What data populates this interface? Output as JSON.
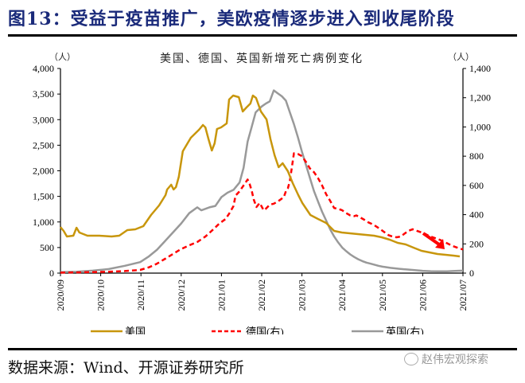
{
  "figure": {
    "title": "图13：受益于疫苗推广，美欧疫情逐步进入到收尾阶段",
    "source": "数据来源：Wind、开源证券研究所",
    "watermark": "赵伟宏观探索",
    "watermark_icon": "wechat-icon"
  },
  "chart_data": {
    "type": "line",
    "title": "美国、德国、英国新增死亡病例变化",
    "xlabel": "",
    "ylabel_left": "（人）",
    "ylabel_right": "（人）",
    "x_tick_labels": [
      "2020/09",
      "2020/10",
      "2020/11",
      "2020/12",
      "2021/01",
      "2021/02",
      "2021/03",
      "2021/04",
      "2021/05",
      "2021/06",
      "2021/07"
    ],
    "x_unit": "months since 2020/09",
    "xlim": [
      0,
      10
    ],
    "ylim_left": [
      0,
      4000
    ],
    "ylim_right": [
      0,
      1400
    ],
    "y_ticks_left": [
      "0",
      "500",
      "1,000",
      "1,500",
      "2,000",
      "2,500",
      "3,000",
      "3,500",
      "4,000"
    ],
    "y_ticks_right": [
      "0",
      "200",
      "400",
      "600",
      "800",
      "1,000",
      "1,200",
      "1,400"
    ],
    "grid": false,
    "legend_position": "bottom",
    "annotation": "red arrow pointing down-right near 2021/06",
    "series": [
      {
        "name": "美国",
        "axis": "left",
        "color": "#c8960c",
        "style": "solid",
        "points": [
          [
            0,
            900
          ],
          [
            0.08,
            825
          ],
          [
            0.16,
            716
          ],
          [
            0.32,
            732
          ],
          [
            0.4,
            887
          ],
          [
            0.47,
            794
          ],
          [
            0.67,
            732
          ],
          [
            0.97,
            732
          ],
          [
            1.27,
            716
          ],
          [
            1.46,
            732
          ],
          [
            1.66,
            840
          ],
          [
            1.86,
            856
          ],
          [
            2.06,
            918
          ],
          [
            2.25,
            1136
          ],
          [
            2.45,
            1323
          ],
          [
            2.61,
            1525
          ],
          [
            2.65,
            1634
          ],
          [
            2.75,
            1728
          ],
          [
            2.81,
            1634
          ],
          [
            2.87,
            1681
          ],
          [
            2.94,
            1883
          ],
          [
            3.04,
            2381
          ],
          [
            3.24,
            2646
          ],
          [
            3.44,
            2802
          ],
          [
            3.54,
            2895
          ],
          [
            3.6,
            2848
          ],
          [
            3.68,
            2615
          ],
          [
            3.76,
            2397
          ],
          [
            3.83,
            2537
          ],
          [
            3.89,
            2817
          ],
          [
            3.99,
            2848
          ],
          [
            4.13,
            2926
          ],
          [
            4.19,
            3393
          ],
          [
            4.29,
            3471
          ],
          [
            4.43,
            3440
          ],
          [
            4.53,
            3160
          ],
          [
            4.62,
            3237
          ],
          [
            4.72,
            3315
          ],
          [
            4.78,
            3471
          ],
          [
            4.86,
            3424
          ],
          [
            4.98,
            3160
          ],
          [
            5.12,
            3004
          ],
          [
            5.22,
            2615
          ],
          [
            5.32,
            2303
          ],
          [
            5.42,
            2070
          ],
          [
            5.52,
            2148
          ],
          [
            5.65,
            1992
          ],
          [
            5.77,
            1759
          ],
          [
            5.91,
            1525
          ],
          [
            6.01,
            1370
          ],
          [
            6.21,
            1136
          ],
          [
            6.4,
            1058
          ],
          [
            6.6,
            981
          ],
          [
            6.8,
            825
          ],
          [
            6.99,
            794
          ],
          [
            7.19,
            778
          ],
          [
            7.39,
            763
          ],
          [
            7.59,
            747
          ],
          [
            7.79,
            732
          ],
          [
            7.98,
            700
          ],
          [
            8.18,
            654
          ],
          [
            8.38,
            591
          ],
          [
            8.58,
            560
          ],
          [
            8.77,
            498
          ],
          [
            8.97,
            436
          ],
          [
            9.17,
            405
          ],
          [
            9.37,
            374
          ],
          [
            9.57,
            358
          ],
          [
            9.76,
            342
          ],
          [
            9.92,
            327
          ]
        ]
      },
      {
        "name": "德国(右)",
        "axis": "right",
        "color": "#ff0000",
        "style": "dashed",
        "points": [
          [
            0,
            3
          ],
          [
            0.4,
            5
          ],
          [
            0.8,
            7
          ],
          [
            1.2,
            10
          ],
          [
            1.6,
            14
          ],
          [
            1.98,
            22
          ],
          [
            2.2,
            40
          ],
          [
            2.4,
            65
          ],
          [
            2.6,
            98
          ],
          [
            2.8,
            132
          ],
          [
            3.0,
            165
          ],
          [
            3.2,
            190
          ],
          [
            3.4,
            213
          ],
          [
            3.6,
            250
          ],
          [
            3.8,
            300
          ],
          [
            3.95,
            340
          ],
          [
            4.1,
            370
          ],
          [
            4.2,
            410
          ],
          [
            4.3,
            460
          ],
          [
            4.35,
            530
          ],
          [
            4.45,
            560
          ],
          [
            4.55,
            600
          ],
          [
            4.65,
            640
          ],
          [
            4.7,
            610
          ],
          [
            4.75,
            565
          ],
          [
            4.8,
            505
          ],
          [
            4.87,
            452
          ],
          [
            4.95,
            480
          ],
          [
            5.05,
            430
          ],
          [
            5.1,
            440
          ],
          [
            5.2,
            468
          ],
          [
            5.3,
            475
          ],
          [
            5.4,
            490
          ],
          [
            5.5,
            510
          ],
          [
            5.55,
            520
          ],
          [
            5.6,
            560
          ],
          [
            5.65,
            580
          ],
          [
            5.7,
            630
          ],
          [
            5.8,
            820
          ],
          [
            5.9,
            815
          ],
          [
            6.0,
            800
          ],
          [
            6.1,
            760
          ],
          [
            6.2,
            715
          ],
          [
            6.3,
            690
          ],
          [
            6.4,
            650
          ],
          [
            6.5,
            600
          ],
          [
            6.6,
            540
          ],
          [
            6.7,
            495
          ],
          [
            6.8,
            445
          ],
          [
            6.9,
            440
          ],
          [
            7.0,
            430
          ],
          [
            7.1,
            410
          ],
          [
            7.2,
            395
          ],
          [
            7.3,
            390
          ],
          [
            7.35,
            395
          ],
          [
            7.45,
            380
          ],
          [
            7.55,
            365
          ],
          [
            7.65,
            347
          ],
          [
            7.75,
            335
          ],
          [
            7.85,
            318
          ],
          [
            7.95,
            300
          ],
          [
            8.05,
            280
          ],
          [
            8.15,
            260
          ],
          [
            8.25,
            250
          ],
          [
            8.35,
            245
          ],
          [
            8.45,
            250
          ],
          [
            8.55,
            270
          ],
          [
            8.65,
            290
          ],
          [
            8.75,
            300
          ],
          [
            8.85,
            290
          ],
          [
            8.95,
            280
          ],
          [
            9.05,
            270
          ],
          [
            9.15,
            255
          ],
          [
            9.3,
            240
          ],
          [
            9.45,
            225
          ],
          [
            9.6,
            205
          ],
          [
            9.75,
            185
          ],
          [
            9.9,
            170
          ],
          [
            10,
            162
          ]
        ]
      },
      {
        "name": "英国(右)",
        "axis": "right",
        "color": "#999999",
        "style": "solid",
        "points": [
          [
            0,
            7
          ],
          [
            0.4,
            10
          ],
          [
            0.8,
            17
          ],
          [
            1.2,
            28
          ],
          [
            1.6,
            50
          ],
          [
            1.98,
            75
          ],
          [
            2.2,
            115
          ],
          [
            2.4,
            160
          ],
          [
            2.6,
            220
          ],
          [
            2.8,
            280
          ],
          [
            3.0,
            340
          ],
          [
            3.2,
            410
          ],
          [
            3.4,
            450
          ],
          [
            3.5,
            430
          ],
          [
            3.7,
            450
          ],
          [
            3.85,
            460
          ],
          [
            4.0,
            520
          ],
          [
            4.15,
            550
          ],
          [
            4.3,
            570
          ],
          [
            4.45,
            620
          ],
          [
            4.55,
            720
          ],
          [
            4.65,
            900
          ],
          [
            4.75,
            1000
          ],
          [
            4.85,
            1100
          ],
          [
            5.0,
            1140
          ],
          [
            5.1,
            1160
          ],
          [
            5.2,
            1175
          ],
          [
            5.3,
            1250
          ],
          [
            5.4,
            1230
          ],
          [
            5.5,
            1210
          ],
          [
            5.6,
            1180
          ],
          [
            5.7,
            1100
          ],
          [
            5.8,
            1020
          ],
          [
            5.9,
            930
          ],
          [
            6.0,
            830
          ],
          [
            6.1,
            740
          ],
          [
            6.2,
            650
          ],
          [
            6.3,
            560
          ],
          [
            6.4,
            490
          ],
          [
            6.5,
            420
          ],
          [
            6.6,
            360
          ],
          [
            6.7,
            300
          ],
          [
            6.8,
            250
          ],
          [
            6.9,
            210
          ],
          [
            7.0,
            175
          ],
          [
            7.1,
            150
          ],
          [
            7.2,
            128
          ],
          [
            7.3,
            110
          ],
          [
            7.4,
            95
          ],
          [
            7.5,
            82
          ],
          [
            7.6,
            72
          ],
          [
            7.7,
            65
          ],
          [
            7.8,
            58
          ],
          [
            7.9,
            50
          ],
          [
            8.0,
            44
          ],
          [
            8.2,
            36
          ],
          [
            8.4,
            30
          ],
          [
            8.6,
            25
          ],
          [
            8.8,
            20
          ],
          [
            9.0,
            16
          ],
          [
            9.2,
            13
          ],
          [
            9.4,
            12
          ],
          [
            9.6,
            12
          ],
          [
            9.8,
            15
          ],
          [
            10,
            17
          ]
        ]
      }
    ]
  }
}
